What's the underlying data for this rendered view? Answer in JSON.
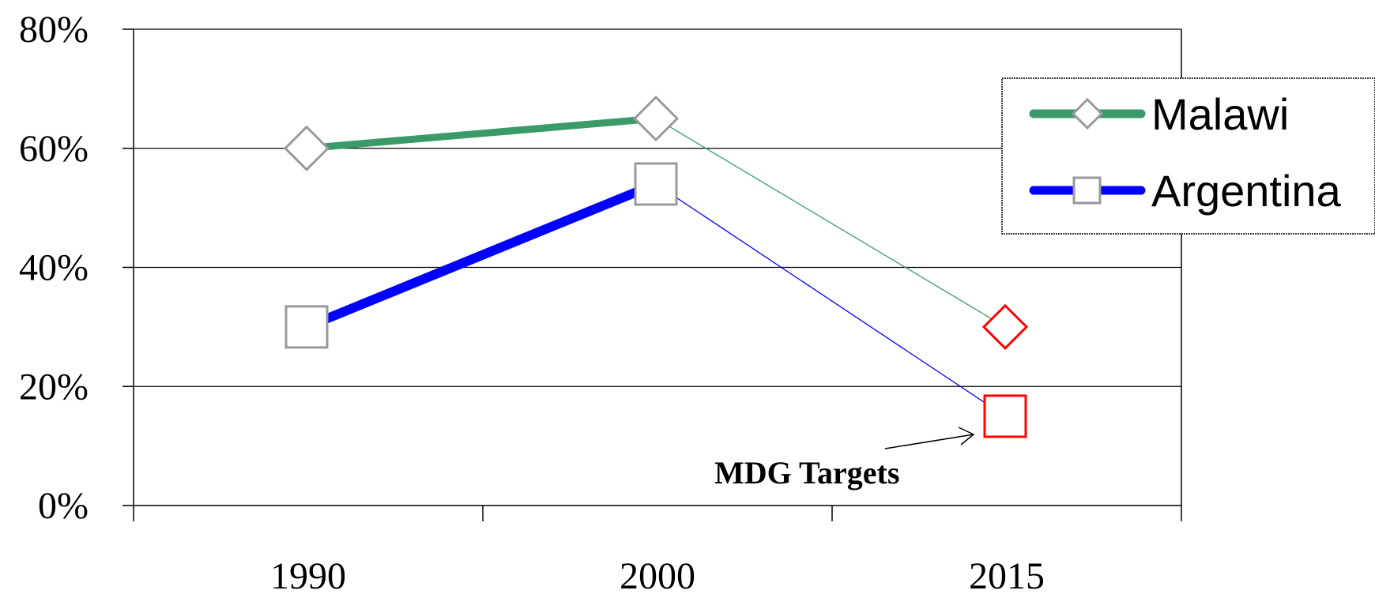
{
  "chart_data": {
    "type": "line",
    "categories": [
      "1990",
      "2000",
      "2015"
    ],
    "y_ticks": [
      "0%",
      "20%",
      "40%",
      "60%",
      "80%"
    ],
    "ylim": [
      0,
      80
    ],
    "y_tick_values": [
      0,
      20,
      40,
      60,
      80
    ],
    "grid": true,
    "legend_placement": "top-right",
    "series": [
      {
        "name": "Malawi",
        "values": [
          60,
          65,
          30
        ],
        "color": "#3a9a68",
        "marker": "diamond"
      },
      {
        "name": "Argentina",
        "values": [
          30,
          54,
          15
        ],
        "color": "#0000ff",
        "marker": "square"
      }
    ],
    "marker_colors": {
      "observed": "#999999",
      "target": "#ff0000"
    },
    "annotation": {
      "text": "MDG Targets",
      "points_to": "2015 targets"
    }
  }
}
